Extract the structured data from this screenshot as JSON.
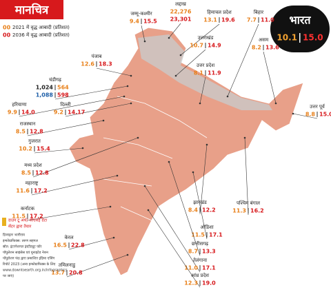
{
  "header": {
    "title": "मानचित्र",
    "legend": [
      {
        "sample": "00",
        "text": "2021 में वृद्ध आबादी (प्रतिशत)"
      },
      {
        "sample": "00",
        "text": "2036 में वृद्ध आबादी (प्रतिशत)"
      }
    ]
  },
  "india": {
    "name": "भारत",
    "values": [
      "10.1",
      "15.0"
    ]
  },
  "regions": [
    {
      "name": "जम्मू-कश्मीर",
      "values": [
        "9.4",
        "15.5"
      ]
    },
    {
      "name": "लद्दाख",
      "values": [
        "22,276",
        "23,301"
      ]
    },
    {
      "name": "हिमाचल प्रदेश",
      "values": [
        "13.1",
        "19.6"
      ]
    },
    {
      "name": "बिहार",
      "values": [
        "7.7",
        "11.0"
      ]
    },
    {
      "name": "उत्तराखंड",
      "values": [
        "10.7",
        "14.9"
      ]
    },
    {
      "name": "असम",
      "values": [
        "8.2",
        "13.6"
      ]
    },
    {
      "name": "पंजाब",
      "values": [
        "12.6",
        "18.3"
      ]
    },
    {
      "name": "उत्तर प्रदेश",
      "values": [
        "8.1",
        "11.9"
      ]
    },
    {
      "name": "चंडीगढ़",
      "values": [
        "1,024",
        "564",
        "1,088",
        "598"
      ]
    },
    {
      "name": "हरियाणा",
      "values": [
        "9.9",
        "14.0"
      ]
    },
    {
      "name": "दिल्ली",
      "values": [
        "9.2",
        "14.17"
      ]
    },
    {
      "name": "उत्तर पूर्व",
      "values": [
        "8.8",
        "15.0"
      ]
    },
    {
      "name": "राजस्थान",
      "values": [
        "8.5",
        "12.8"
      ]
    },
    {
      "name": "गुजरात",
      "values": [
        "10.2",
        "15.4"
      ]
    },
    {
      "name": "मध्य प्रदेश",
      "values": [
        "8.5",
        "12.8"
      ]
    },
    {
      "name": "महाराष्ट्र",
      "values": [
        "11.6",
        "17.2"
      ]
    },
    {
      "name": "कर्नाटक",
      "values": [
        "11.5",
        "17.2"
      ]
    },
    {
      "name": "झारखंड",
      "values": [
        "8.4",
        "12.2"
      ]
    },
    {
      "name": "पश्चिम बंगाल",
      "values": [
        "11.3",
        "16.2"
      ]
    },
    {
      "name": "ओडिशा",
      "values": [
        "11.5",
        "17.1"
      ]
    },
    {
      "name": "छत्तीसगढ़",
      "values": [
        "8.7",
        "13.3"
      ]
    },
    {
      "name": "केरल",
      "values": [
        "16.5",
        "22.8"
      ]
    },
    {
      "name": "तेलंगाना",
      "values": [
        "11.0",
        "17.1"
      ]
    },
    {
      "name": "तमिलनाडु",
      "values": [
        "13.7",
        "20.8"
      ]
    },
    {
      "name": "आंध्र प्रदेश",
      "values": [
        "12.3",
        "19.0"
      ]
    }
  ],
  "credits": {
    "heading": [
      "डाउन टू अर्थ/ सीएसई डेटा",
      "सेंटर द्वारा तैयार"
    ],
    "lines": [
      "डिजाइनः भानीराम",
      "इन्फोग्राफिक्स: तरुण सहगल",
      "स्रोत: इंटरनेशनल इंस्टीट्यूट फॉर",
      "पॉपुलेशन साइंसेस एवं यूनाइटेड नेशन",
      "पॉपुलेशन फंड द्वारा प्रकाशित इंडिया एजिंग",
      "रिपोर्ट 2023 (अन्य इन्फोग्राफिक्स के लिए",
      "www.downtoearth.org.in/infographics",
      "पर जाएं)"
    ]
  }
}
